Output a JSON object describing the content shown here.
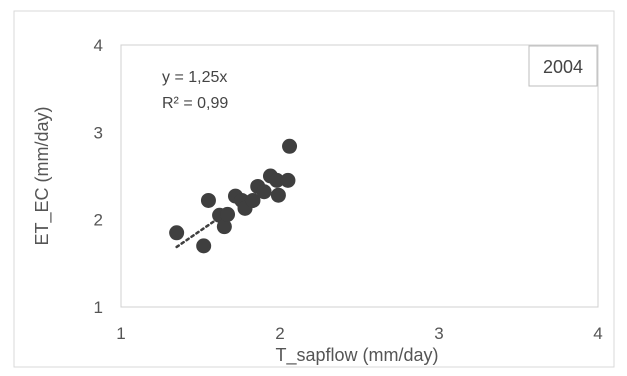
{
  "chart_data": {
    "type": "scatter",
    "title": "",
    "xlabel": "T_sapflow (mm/day)",
    "ylabel": "ET_EC (mm/day)",
    "xlim": [
      1,
      4
    ],
    "ylim": [
      1,
      4
    ],
    "xticks": [
      "1",
      "2",
      "3",
      "4"
    ],
    "yticks": [
      "1",
      "2",
      "3",
      "4"
    ],
    "grid": false,
    "point_color": "#3f3f3f",
    "trendline_color": "#3f3f3f",
    "series": [
      {
        "points": [
          {
            "x": 1.35,
            "y": 1.85
          },
          {
            "x": 1.52,
            "y": 1.7
          },
          {
            "x": 1.55,
            "y": 2.22
          },
          {
            "x": 1.62,
            "y": 2.05
          },
          {
            "x": 1.65,
            "y": 1.92
          },
          {
            "x": 1.67,
            "y": 2.06
          },
          {
            "x": 1.72,
            "y": 2.27
          },
          {
            "x": 1.76,
            "y": 2.22
          },
          {
            "x": 1.78,
            "y": 2.13
          },
          {
            "x": 1.83,
            "y": 2.22
          },
          {
            "x": 1.86,
            "y": 2.38
          },
          {
            "x": 1.9,
            "y": 2.32
          },
          {
            "x": 1.94,
            "y": 2.5
          },
          {
            "x": 1.98,
            "y": 2.45
          },
          {
            "x": 1.99,
            "y": 2.28
          },
          {
            "x": 2.05,
            "y": 2.45
          },
          {
            "x": 2.06,
            "y": 2.84
          }
        ]
      }
    ],
    "trendline": {
      "slope": 1.25,
      "x_range": [
        1.35,
        1.62
      ]
    },
    "annotations": {
      "equation": "y = 1,25x",
      "r_squared": "R² = 0,99",
      "year": "2004"
    }
  }
}
